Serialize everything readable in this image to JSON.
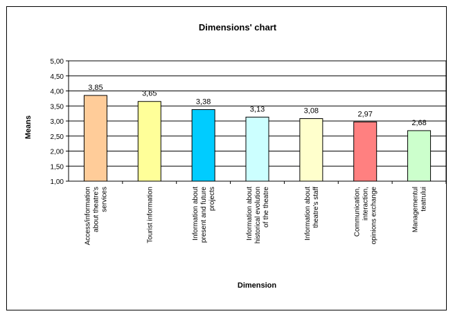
{
  "chart_data": {
    "type": "bar",
    "title": "Dimensions' chart",
    "xlabel": "Dimension",
    "ylabel": "Means",
    "ylim": [
      1.0,
      5.0
    ],
    "ytick_step": 0.5,
    "ytick_labels": [
      "1,00",
      "1,50",
      "2,00",
      "2,50",
      "3,00",
      "3,50",
      "4,00",
      "4,50",
      "5,00"
    ],
    "grid": true,
    "categories": [
      [
        "Access/information",
        "about theatre's",
        "services"
      ],
      [
        "Tourist information"
      ],
      [
        "Information about",
        "present and future",
        "projects"
      ],
      [
        "Information about",
        "historical evolution",
        "of the theatre"
      ],
      [
        "Information about",
        "theatre's staff"
      ],
      [
        "Communication,",
        "interaction,",
        "opinions exchange"
      ],
      [
        "Managementul",
        "teatrului"
      ]
    ],
    "values": [
      3.85,
      3.65,
      3.38,
      3.13,
      3.08,
      2.97,
      2.68
    ],
    "value_labels": [
      "3,85",
      "3,65",
      "3,38",
      "3,13",
      "3,08",
      "2,97",
      "2,68"
    ],
    "colors": [
      "#FFCC99",
      "#FFFF99",
      "#00CCFF",
      "#CCFFFF",
      "#FFFFCC",
      "#FF8080",
      "#CCFFCC"
    ]
  }
}
